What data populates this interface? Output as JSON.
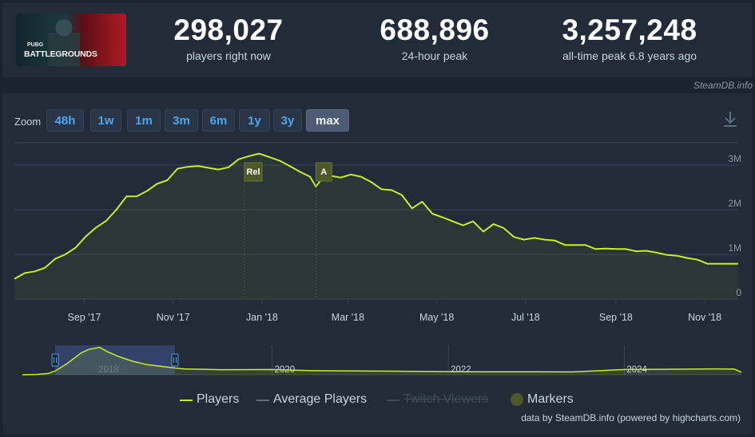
{
  "game": {
    "logo_small": "PUBG",
    "logo_big": "BATTLEGROUNDS"
  },
  "stats": [
    {
      "value": "298,027",
      "label": "players right now"
    },
    {
      "value": "688,896",
      "label": "24-hour peak"
    },
    {
      "value": "3,257,248",
      "label": "all-time peak 6.8 years ago"
    }
  ],
  "credit_top": "SteamDB.info",
  "zoom": {
    "label": "Zoom",
    "buttons": [
      "48h",
      "1w",
      "1m",
      "3m",
      "6m",
      "1y",
      "3y",
      "max"
    ],
    "active": "max"
  },
  "legend": [
    {
      "name": "Players",
      "color": "#c4f026",
      "enabled": true
    },
    {
      "name": "Average Players",
      "color": "#5b6f86",
      "enabled": true
    },
    {
      "name": "Twitch Viewers",
      "color": "#3f4d5c",
      "enabled": false
    },
    {
      "name": "Markers",
      "color": "#4d5a28",
      "enabled": true
    }
  ],
  "credit_bottom": "data by SteamDB.info (powered by highcharts.com)",
  "colors": {
    "players": "#c4f026",
    "marker": "#4c5926",
    "grid": "#3a4557",
    "navigator_selection": "#3b4a7a"
  },
  "chart_data": {
    "type": "line",
    "series": [
      {
        "name": "Players",
        "x": [
          "2017-07-15",
          "2017-07-22",
          "2017-07-29",
          "2017-08-05",
          "2017-08-12",
          "2017-08-19",
          "2017-08-26",
          "2017-09-02",
          "2017-09-09",
          "2017-09-16",
          "2017-09-23",
          "2017-09-30",
          "2017-10-07",
          "2017-10-14",
          "2017-10-21",
          "2017-10-28",
          "2017-11-04",
          "2017-11-11",
          "2017-11-18",
          "2017-11-25",
          "2017-12-02",
          "2017-12-09",
          "2017-12-16",
          "2017-12-23",
          "2017-12-30",
          "2018-01-06",
          "2018-01-13",
          "2018-01-20",
          "2018-01-27",
          "2018-02-03",
          "2018-02-07",
          "2018-02-11",
          "2018-02-17",
          "2018-02-24",
          "2018-03-03",
          "2018-03-10",
          "2018-03-17",
          "2018-03-24",
          "2018-03-31",
          "2018-04-07",
          "2018-04-14",
          "2018-04-21",
          "2018-04-28",
          "2018-05-05",
          "2018-05-12",
          "2018-05-19",
          "2018-05-26",
          "2018-06-02",
          "2018-06-09",
          "2018-06-16",
          "2018-06-23",
          "2018-06-30",
          "2018-07-07",
          "2018-07-14",
          "2018-07-21",
          "2018-07-28",
          "2018-08-04",
          "2018-08-11",
          "2018-08-18",
          "2018-08-25",
          "2018-09-01",
          "2018-09-08",
          "2018-09-15",
          "2018-09-22",
          "2018-09-29",
          "2018-10-06",
          "2018-10-13",
          "2018-10-20",
          "2018-10-27",
          "2018-11-03",
          "2018-11-10",
          "2018-11-17",
          "2018-11-24"
        ],
        "values": [
          450000,
          580000,
          620000,
          700000,
          900000,
          1000000,
          1150000,
          1400000,
          1600000,
          1750000,
          2000000,
          2300000,
          2300000,
          2420000,
          2580000,
          2660000,
          2920000,
          2960000,
          2980000,
          2940000,
          2900000,
          2950000,
          3130000,
          3200000,
          3257248,
          3180000,
          3100000,
          2980000,
          2850000,
          2740000,
          2520000,
          2680000,
          2760000,
          2720000,
          2790000,
          2740000,
          2620000,
          2460000,
          2440000,
          2330000,
          2030000,
          2180000,
          1910000,
          1830000,
          1740000,
          1650000,
          1740000,
          1510000,
          1680000,
          1590000,
          1390000,
          1330000,
          1370000,
          1330000,
          1310000,
          1210000,
          1210000,
          1210000,
          1120000,
          1130000,
          1120000,
          1120000,
          1070000,
          1080000,
          1040000,
          990000,
          970000,
          920000,
          880000,
          790000,
          790000,
          790000,
          790000
        ],
        "color": "#c4f026"
      }
    ],
    "y_ticks": [
      "0",
      "1M",
      "2M",
      "3M"
    ],
    "ylim": [
      0,
      3500000
    ],
    "x_ticks": [
      {
        "label": "Sep '17",
        "date": "2017-09-01"
      },
      {
        "label": "Nov '17",
        "date": "2017-11-01"
      },
      {
        "label": "Jan '18",
        "date": "2018-01-01"
      },
      {
        "label": "Mar '18",
        "date": "2018-03-01"
      },
      {
        "label": "May '18",
        "date": "2018-05-01"
      },
      {
        "label": "Jul '18",
        "date": "2018-07-01"
      },
      {
        "label": "Sep '18",
        "date": "2018-09-01"
      },
      {
        "label": "Nov '18",
        "date": "2018-11-01"
      }
    ],
    "x_range": [
      "2017-07-15",
      "2018-11-24"
    ],
    "markers": [
      {
        "label": "Rel",
        "date": "2017-12-20"
      },
      {
        "label": "A",
        "date": "2018-02-07"
      }
    ],
    "navigator": {
      "x_range": [
        "2017-03-01",
        "2025-05-01"
      ],
      "selection": [
        "2017-07-15",
        "2018-11-24"
      ],
      "year_labels": [
        {
          "label": "2018",
          "date": "2018-01-01"
        },
        {
          "label": "2020",
          "date": "2020-01-01"
        },
        {
          "label": "2022",
          "date": "2022-01-01"
        },
        {
          "label": "2024",
          "date": "2024-01-01"
        }
      ],
      "x": [
        "2017-03-01",
        "2017-05-01",
        "2017-06-15",
        "2017-07-15",
        "2017-09-01",
        "2017-11-01",
        "2017-12-01",
        "2018-01-15",
        "2018-02-15",
        "2018-04-01",
        "2018-06-01",
        "2018-08-01",
        "2018-11-24",
        "2019-01-01",
        "2019-06-01",
        "2020-01-01",
        "2020-06-01",
        "2021-01-01",
        "2021-06-01",
        "2022-01-15",
        "2022-06-01",
        "2023-01-01",
        "2023-06-01",
        "2024-01-01",
        "2024-06-01",
        "2025-01-01",
        "2025-04-01",
        "2025-05-01"
      ],
      "values": [
        0,
        50000,
        150000,
        450000,
        1300000,
        2600000,
        3000000,
        3250000,
        2750000,
        2200000,
        1600000,
        1200000,
        800000,
        700000,
        600000,
        620000,
        500000,
        450000,
        420000,
        380000,
        350000,
        360000,
        340000,
        620000,
        650000,
        700000,
        690000,
        300000
      ]
    }
  }
}
